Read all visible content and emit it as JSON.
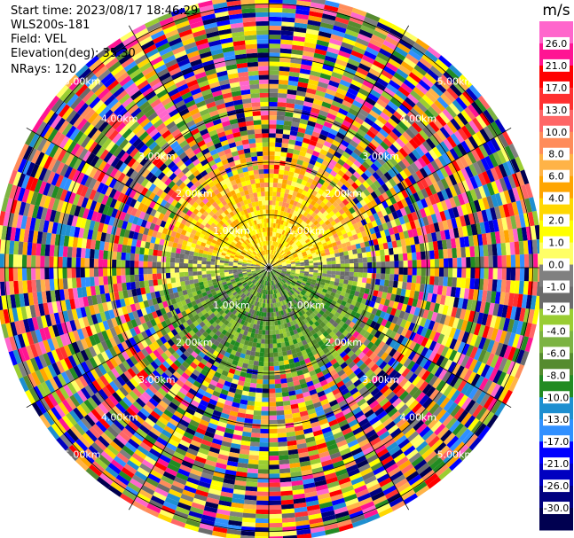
{
  "header": {
    "start_time": "Start time: 2023/08/17 18:46:29",
    "instrument": "WLS200s-181",
    "field": "Field: VEL",
    "elevation": "Elevation(deg): 35.30",
    "nrays": "NRays: 120"
  },
  "chart_data": {
    "type": "heatmap",
    "projection": "polar-ppi",
    "field": "VEL",
    "n_rays": 120,
    "unit": "m/s",
    "range_ring_labels": [
      "1.00km",
      "2.00km",
      "3.00km",
      "4.00km",
      "5.00km"
    ],
    "colorbar": {
      "label": "m/s",
      "ticks": [
        "26.0",
        "21.0",
        "17.0",
        "13.0",
        "10.0",
        "8.0",
        "6.0",
        "4.0",
        "2.0",
        "1.0",
        "0.0",
        "-1.0",
        "-2.0",
        "-4.0",
        "-6.0",
        "-8.0",
        "-10.0",
        "-13.0",
        "-17.0",
        "-21.0",
        "-26.0",
        "-30.0"
      ],
      "colors": [
        "#ff66cc",
        "#ff1493",
        "#ff0000",
        "#ff3030",
        "#ff6666",
        "#ff8c5a",
        "#ffb347",
        "#ffa500",
        "#ffd700",
        "#ffff00",
        "#ffff66",
        "#808080",
        "#6b6b6b",
        "#9acd32",
        "#7cb342",
        "#558b2f",
        "#228b22",
        "#1e8fd0",
        "#3090ff",
        "#0000ff",
        "#0000c0",
        "#000080",
        "#000050"
      ]
    },
    "pattern": {
      "near_north": "positive 1-6 m/s (yellow/orange)",
      "near_south": "negative 1-6 m/s (green)",
      "far_range": "noise across full scale"
    }
  }
}
